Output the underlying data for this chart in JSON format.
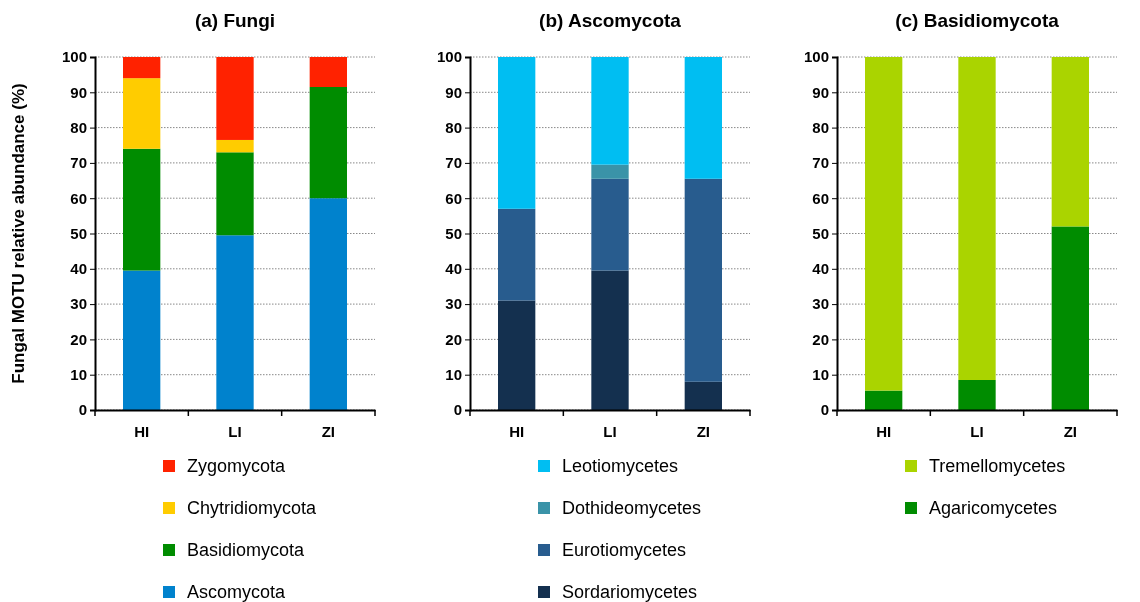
{
  "chart_data": [
    {
      "type": "bar",
      "title": "(a) Fungi",
      "ylabel": "Fungal MOTU relative abundance (%)",
      "categories": [
        "HI",
        "LI",
        "ZI"
      ],
      "stacked": true,
      "ylim": [
        0,
        100
      ],
      "yticks": [
        0,
        10,
        20,
        30,
        40,
        50,
        60,
        70,
        80,
        90,
        100
      ],
      "grid": "y",
      "legend": "bottom",
      "series": [
        {
          "name": "Ascomycota",
          "color": "#0082cd",
          "values": [
            39.5,
            49.5,
            60
          ]
        },
        {
          "name": "Basidiomycota",
          "color": "#008c00",
          "values": [
            34.5,
            23.5,
            31.5
          ]
        },
        {
          "name": "Chytridiomycota",
          "color": "#ffcc00",
          "values": [
            20,
            3.5,
            0
          ]
        },
        {
          "name": "Zygomycota",
          "color": "#ff2200",
          "values": [
            6,
            23.5,
            8.5
          ]
        }
      ]
    },
    {
      "type": "bar",
      "title": "(b) Ascomycota",
      "categories": [
        "HI",
        "LI",
        "ZI"
      ],
      "stacked": true,
      "ylim": [
        0,
        100
      ],
      "yticks": [
        0,
        10,
        20,
        30,
        40,
        50,
        60,
        70,
        80,
        90,
        100
      ],
      "grid": "y",
      "legend": "bottom",
      "series": [
        {
          "name": "Sordariomycetes",
          "color": "#14304f",
          "values": [
            31,
            39.5,
            8
          ]
        },
        {
          "name": "Eurotiomycetes",
          "color": "#285c8e",
          "values": [
            26,
            26,
            57.5
          ]
        },
        {
          "name": "Dothideomycetes",
          "color": "#3a93a8",
          "values": [
            0,
            4,
            0
          ]
        },
        {
          "name": "Leotiomycetes",
          "color": "#00bef2",
          "values": [
            43,
            30.5,
            34.5
          ]
        }
      ]
    },
    {
      "type": "bar",
      "title": "(c) Basidiomycota",
      "categories": [
        "HI",
        "LI",
        "ZI"
      ],
      "stacked": true,
      "ylim": [
        0,
        100
      ],
      "yticks": [
        0,
        10,
        20,
        30,
        40,
        50,
        60,
        70,
        80,
        90,
        100
      ],
      "grid": "y",
      "legend": "bottom",
      "series": [
        {
          "name": "Agaricomycetes",
          "color": "#008c00",
          "values": [
            5.5,
            8.5,
            52
          ]
        },
        {
          "name": "Tremellomycetes",
          "color": "#aad400",
          "values": [
            94.5,
            91.5,
            48
          ]
        }
      ]
    }
  ]
}
